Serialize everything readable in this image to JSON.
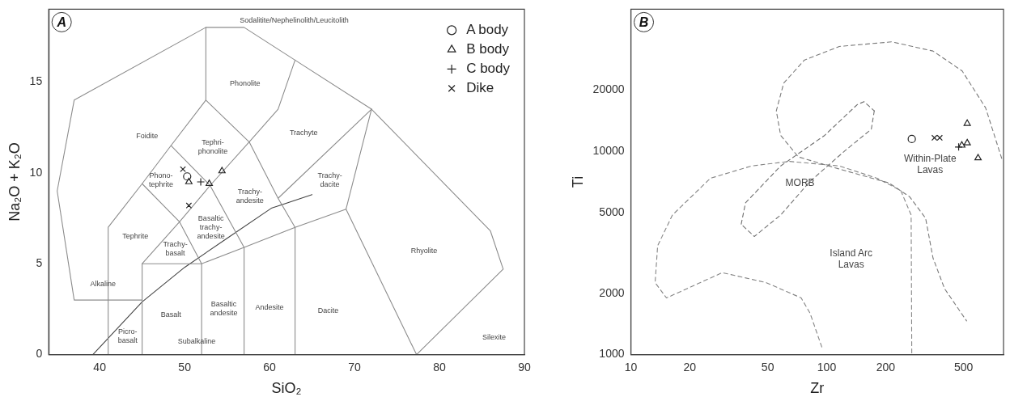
{
  "chart_data": [
    {
      "type": "scatter",
      "title": "A",
      "xlabel": "SiO₂",
      "ylabel": "Na₂O + K₂O",
      "xlim": [
        34,
        90
      ],
      "ylim": [
        0,
        19
      ],
      "xticks": [
        40,
        50,
        60,
        70,
        80,
        90
      ],
      "yticks": [
        0,
        5,
        10,
        15
      ],
      "legend": "top right",
      "annotations": [
        "Sodalitite/Nephelinolith/Leucitolith",
        "Phonolite",
        "Foidite",
        "Trachyte",
        "Tephri-\nphonolite",
        "Phono-\ntephrite",
        "Trachy-\nandesite",
        "Trachy-\ndacite",
        "Tephrite",
        "Basaltic\ntrachy-\nandesite",
        "Trachy-\nbasalt",
        "Rhyolite",
        "Alkaline",
        "Subalkaline",
        "Picro-\nbasalt",
        "Basalt",
        "Basaltic\nandesite",
        "Andesite",
        "Dacite",
        "Silexite"
      ],
      "series": [
        {
          "type": "line",
          "color": "#8c8c8c",
          "marker": "none",
          "x": [
            45,
            37,
            35,
            37,
            52.5,
            57,
            63,
            72,
            86,
            87.5,
            77.3
          ],
          "values": [
            3,
            3,
            9,
            14,
            18,
            18,
            16.2,
            13.5,
            6.8,
            4.7,
            0
          ]
        },
        {
          "type": "line",
          "color": "#8c8c8c",
          "marker": "none",
          "x": [
            41,
            41,
            45,
            48.4,
            52.5,
            52.5
          ],
          "values": [
            0,
            7,
            9.4,
            11.5,
            14,
            18
          ]
        },
        {
          "type": "line",
          "color": "#8c8c8c",
          "marker": "none",
          "x": [
            45,
            45,
            52,
            57,
            63,
            69,
            72
          ],
          "values": [
            0,
            5,
            5,
            5.9,
            7,
            8,
            13.5
          ]
        },
        {
          "type": "line",
          "color": "#8c8c8c",
          "marker": "none",
          "x": [
            52,
            52,
            49.4,
            45
          ],
          "values": [
            0,
            5,
            7.3,
            5
          ]
        },
        {
          "type": "line",
          "color": "#8c8c8c",
          "marker": "none",
          "x": [
            45,
            49.4,
            53,
            57.6,
            61,
            63
          ],
          "values": [
            9.4,
            7.3,
            9.3,
            11.7,
            13.5,
            16.2
          ]
        },
        {
          "type": "line",
          "color": "#8c8c8c",
          "marker": "none",
          "x": [
            48.4,
            53,
            57,
            57
          ],
          "values": [
            11.5,
            9.3,
            5.9,
            0
          ]
        },
        {
          "type": "line",
          "color": "#8c8c8c",
          "marker": "none",
          "x": [
            52.5,
            57.6,
            61,
            63,
            63
          ],
          "values": [
            14,
            11.7,
            8.6,
            7,
            0
          ]
        },
        {
          "type": "line",
          "color": "#8c8c8c",
          "marker": "none",
          "x": [
            61,
            72
          ],
          "values": [
            8.6,
            13.5
          ]
        },
        {
          "type": "line",
          "color": "#8c8c8c",
          "marker": "none",
          "x": [
            69,
            77.3
          ],
          "values": [
            8,
            0
          ]
        },
        {
          "type": "line",
          "color": "#444444",
          "marker": "none",
          "x": [
            39.2,
            45,
            50,
            55,
            60.2,
            65
          ],
          "values": [
            0,
            2.9,
            4.8,
            6.4,
            8.05,
            8.8
          ]
        },
        {
          "name": "A body",
          "type": "scatter",
          "color": "#222222",
          "marker": "circle",
          "x": [
            50.3
          ],
          "values": [
            9.8
          ]
        },
        {
          "name": "B body",
          "type": "scatter",
          "color": "#222222",
          "marker": "triangle",
          "x": [
            50.5,
            52.9,
            54.4
          ],
          "values": [
            9.5,
            9.4,
            10.1
          ]
        },
        {
          "name": "C body",
          "type": "scatter",
          "color": "#222222",
          "marker": "plus",
          "x": [
            51.9
          ],
          "values": [
            9.5
          ]
        },
        {
          "name": "Dike",
          "type": "scatter",
          "color": "#222222",
          "marker": "cross",
          "x": [
            49.8,
            50.5
          ],
          "values": [
            10.2,
            8.2
          ]
        }
      ]
    },
    {
      "type": "scatter",
      "title": "B",
      "xlabel": "Zr",
      "ylabel": "Ti",
      "log": "xy",
      "xlim": [
        10,
        800
      ],
      "ylim": [
        1000,
        50000
      ],
      "xticks": [
        10,
        20,
        50,
        100,
        200,
        500
      ],
      "yticks": [
        1000,
        2000,
        5000,
        10000,
        20000
      ],
      "annotations": [
        "MORB",
        "Island Arc\nLavas",
        "Within-Plate\nLavas"
      ],
      "series": [
        {
          "type": "line",
          "color": "#7a7a7a",
          "marker": "none",
          "line_style": "dashed",
          "x": [
            783,
            648,
            492,
            349,
            215,
            116,
            76.7,
            60.3,
            55.3,
            58.2,
            71.6,
            116,
            208,
            265,
            320,
            349,
            400,
            518
          ],
          "values": [
            9230,
            16370,
            24850,
            31130,
            34550,
            32800,
            28050,
            21620,
            15820,
            11980,
            9390,
            8180,
            6990,
            5980,
            4690,
            2990,
            2110,
            1465
          ]
        },
        {
          "type": "line",
          "color": "#6e6e6e",
          "marker": "none",
          "line_style": "dashed",
          "x": [
            36.6,
            38.5,
            58.2,
            97.7,
            143,
            155,
            175
          ],
          "values": [
            4380,
            5580,
            8470,
            11980,
            16950,
            17550,
            15820
          ]
        },
        {
          "type": "line",
          "color": "#737373",
          "marker": "none",
          "line_style": "dashed",
          "x": [
            175,
            169,
            124,
            82.2,
            58.2,
            42.7,
            36.6
          ],
          "values": [
            15820,
            12840,
            10070,
            7110,
            4860,
            3810,
            4380
          ]
        },
        {
          "type": "line",
          "color": "#858585",
          "marker": "none",
          "line_style": "dashed",
          "x": [
            94.4,
            82.2,
            74.1,
            49.1,
            29.3,
            15.2,
            13.3,
            13.7,
            16.3,
            25.5,
            41.3,
            64.6,
            116,
            181,
            239,
            270,
            272
          ],
          "values": [
            1090,
            1600,
            1900,
            2260,
            2530,
            1900,
            2260,
            3430,
            4860,
            7370,
            8470,
            8920,
            8470,
            7370,
            6410,
            4860,
            1020
          ]
        },
        {
          "type": "scatter",
          "color": "#222222",
          "marker": "circle",
          "x": [
            272
          ],
          "values": [
            11500
          ]
        },
        {
          "type": "scatter",
          "color": "#222222",
          "marker": "triangle",
          "x": [
            522,
            522,
            490,
            593
          ],
          "values": [
            13700,
            10990,
            10700,
            9270
          ]
        },
        {
          "type": "scatter",
          "color": "#222222",
          "marker": "plus",
          "x": [
            472
          ],
          "values": [
            10500
          ]
        },
        {
          "type": "scatter",
          "color": "#222222",
          "marker": "cross",
          "x": [
            355,
            378
          ],
          "values": [
            11650,
            11650
          ]
        }
      ]
    }
  ]
}
